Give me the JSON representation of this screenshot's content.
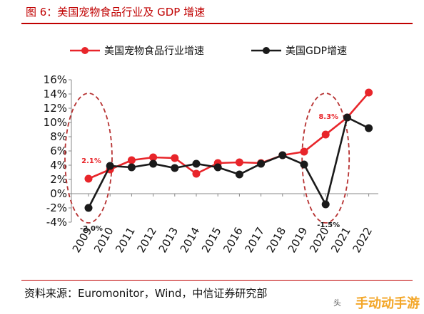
{
  "header": {
    "title": "图 6：美国宠物食品行业及 GDP 增速"
  },
  "footer": {
    "source": "资料来源：Euromonitor，Wind，中信证券研究部"
  },
  "watermark": {
    "text": "手动动手游",
    "small": "头"
  },
  "colors": {
    "accent": "#c00000",
    "series1": "#e8252a",
    "series2": "#1a1a1a",
    "ellipse": "#b73232"
  },
  "chart_data": {
    "type": "line",
    "title": "",
    "xlabel": "",
    "ylabel": "",
    "x": [
      "2009",
      "2010",
      "2011",
      "2012",
      "2013",
      "2014",
      "2015",
      "2016",
      "2017",
      "2018",
      "2019",
      "2020",
      "2021",
      "2022"
    ],
    "ylim": [
      -4,
      16
    ],
    "yticks": [
      -4,
      -2,
      0,
      2,
      4,
      6,
      8,
      10,
      12,
      14,
      16
    ],
    "ytick_labels": [
      "-4%",
      "-2%",
      "0%",
      "2%",
      "4%",
      "6%",
      "8%",
      "10%",
      "12%",
      "14%",
      "16%"
    ],
    "legend_position": "top",
    "grid": false,
    "series": [
      {
        "name": "美国宠物食品行业增速",
        "color": "#e8252a",
        "values": [
          2.1,
          3.4,
          4.7,
          5.1,
          5.0,
          2.8,
          4.3,
          4.4,
          4.3,
          5.4,
          5.9,
          8.3,
          10.7,
          14.2
        ]
      },
      {
        "name": "美国GDP增速",
        "color": "#1a1a1a",
        "values": [
          -2.0,
          3.9,
          3.7,
          4.2,
          3.6,
          4.2,
          3.7,
          2.7,
          4.2,
          5.4,
          4.1,
          -1.5,
          10.7,
          9.2
        ]
      }
    ],
    "annotations": [
      {
        "text": "2.1%",
        "x": "2009",
        "y": 2.1,
        "color": "#e8252a"
      },
      {
        "text": "-2.0%",
        "x": "2009",
        "y": -2.0,
        "color": "#1a1a1a"
      },
      {
        "text": "8.3%",
        "x": "2020",
        "y": 8.3,
        "color": "#e8252a"
      },
      {
        "text": "-1.5%",
        "x": "2020",
        "y": -1.5,
        "color": "#1a1a1a"
      }
    ],
    "highlights": [
      "2009",
      "2020"
    ]
  }
}
